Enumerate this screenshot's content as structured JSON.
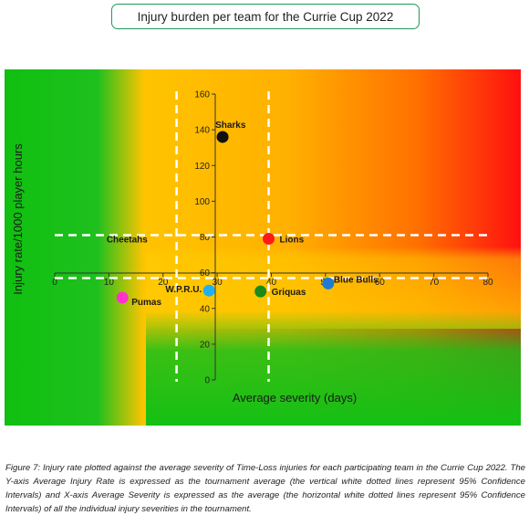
{
  "chart_data": {
    "type": "scatter",
    "title": "Injury burden per team for the Currie Cup 2022",
    "xlabel": "Average severity (days)",
    "ylabel": "Injury rate/1000 player hours",
    "xlim": [
      0,
      80
    ],
    "ylim": [
      0,
      160
    ],
    "x_ticks": [
      "0",
      "10",
      "20",
      "30",
      "40",
      "50",
      "60",
      "70",
      "80"
    ],
    "y_ticks": [
      "0",
      "20",
      "40",
      "60",
      "80",
      "100",
      "120",
      "140",
      "160"
    ],
    "points": [
      {
        "label": "Sharks",
        "x": 31,
        "y": 136,
        "color": "#111111"
      },
      {
        "label": "Lions",
        "x": 39.5,
        "y": 79,
        "color": "#ff1a1a"
      },
      {
        "label": "Cheetahs",
        "x": 18.5,
        "y": 77,
        "color": "#ffc000"
      },
      {
        "label": "Blue Bulls",
        "x": 50.5,
        "y": 54,
        "color": "#1f7ad4"
      },
      {
        "label": "W.P.R.U.",
        "x": 28.5,
        "y": 50,
        "color": "#1fb0f0"
      },
      {
        "label": "Griquas",
        "x": 38,
        "y": 49.5,
        "color": "#1a8a1a"
      },
      {
        "label": "Pumas",
        "x": 12.5,
        "y": 46,
        "color": "#ff33cc"
      }
    ],
    "ci_x": [
      22.5,
      39.5
    ],
    "ci_y": [
      57,
      81
    ],
    "grid": false,
    "legend": "none",
    "background": "severity heatmap green-yellow-orange-red"
  },
  "caption": "Figure 7: Injury rate plotted against the average severity of Time-Loss injuries for each participating team in the Currie Cup 2022. The Y-axis Average Injury Rate is expressed as the tournament average (the vertical white dotted lines represent 95% Confidence Intervals) and X-axis Average Severity is expressed as the average (the horizontal white dotted lines represent 95% Confidence Intervals) of all the individual injury severities in the tournament."
}
